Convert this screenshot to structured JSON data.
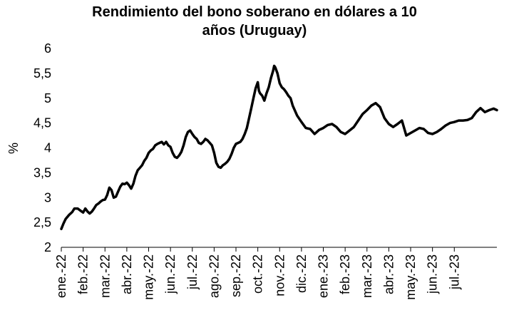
{
  "chart_data": {
    "type": "line",
    "title_line1": "Rendimiento del bono soberano en dólares a 10",
    "title_line2": "años (Uruguay)",
    "ylabel": "%",
    "xlabel": "",
    "ylim": [
      2,
      6
    ],
    "yticks": [
      "2",
      "2,5",
      "3",
      "3,5",
      "4",
      "4,5",
      "5",
      "5,5",
      "6"
    ],
    "ytick_values": [
      2,
      2.5,
      3,
      3.5,
      4,
      4.5,
      5,
      5.5,
      6
    ],
    "x_unit": "month-index (0 = ene.-22)",
    "xlim": [
      0,
      19.95
    ],
    "xticks": [
      "ene.-22",
      "feb.-22",
      "mar.-22",
      "abr.-22",
      "may.-22",
      "jun.-22",
      "jul.-22",
      "ago.-22",
      "sep.-22",
      "oct.-22",
      "nov.-22",
      "dic.-22",
      "ene.-23",
      "feb.-23",
      "mar.-23",
      "abr.-23",
      "may.-23",
      "jun.-23",
      "jul.-23"
    ],
    "grid": false,
    "legend": "none",
    "line_color": "#000000",
    "series": [
      {
        "x": [
          0,
          0.1,
          0.2,
          0.35,
          0.5,
          0.6,
          0.75,
          0.9,
          1.0,
          1.1,
          1.2,
          1.3,
          1.4,
          1.5,
          1.6,
          1.7,
          1.8,
          1.9,
          2.0,
          2.1,
          2.2,
          2.3,
          2.4,
          2.5,
          2.6,
          2.7,
          2.8,
          2.9,
          3.0,
          3.1,
          3.2,
          3.3,
          3.4,
          3.5,
          3.6,
          3.7,
          3.8,
          3.9,
          4.0,
          4.1,
          4.2,
          4.3,
          4.4,
          4.5,
          4.6,
          4.7,
          4.8,
          4.9,
          5.0,
          5.1,
          5.2,
          5.3,
          5.4,
          5.5,
          5.6,
          5.7,
          5.8,
          5.9,
          6.0,
          6.1,
          6.2,
          6.3,
          6.4,
          6.5,
          6.6,
          6.7,
          6.8,
          6.9,
          7.0,
          7.1,
          7.2,
          7.3,
          7.4,
          7.5,
          7.6,
          7.7,
          7.8,
          7.9,
          8.0,
          8.1,
          8.2,
          8.3,
          8.4,
          8.5,
          8.6,
          8.7,
          8.8,
          8.9,
          9.0,
          9.05,
          9.1,
          9.2,
          9.3,
          9.4,
          9.5,
          9.6,
          9.7,
          9.75,
          9.8,
          9.9,
          10.0,
          10.1,
          10.2,
          10.3,
          10.4,
          10.5,
          10.6,
          10.8,
          11.0,
          11.2,
          11.4,
          11.6,
          11.8,
          12.0,
          12.2,
          12.4,
          12.6,
          12.8,
          13.0,
          13.2,
          13.4,
          13.6,
          13.8,
          14.0,
          14.2,
          14.4,
          14.6,
          14.8,
          15.0,
          15.2,
          15.4,
          15.6,
          15.8,
          16.0,
          16.2,
          16.4,
          16.6,
          16.8,
          17.0,
          17.2,
          17.4,
          17.6,
          17.8,
          18.0,
          18.2,
          18.4,
          18.6,
          18.8,
          19.0,
          19.2,
          19.4,
          19.6,
          19.8,
          19.95
        ],
        "values": [
          2.37,
          2.48,
          2.57,
          2.65,
          2.71,
          2.78,
          2.78,
          2.73,
          2.7,
          2.78,
          2.72,
          2.68,
          2.72,
          2.78,
          2.85,
          2.88,
          2.92,
          2.95,
          2.96,
          3.05,
          3.2,
          3.15,
          3.0,
          3.02,
          3.12,
          3.22,
          3.28,
          3.27,
          3.3,
          3.25,
          3.18,
          3.28,
          3.44,
          3.55,
          3.6,
          3.65,
          3.74,
          3.8,
          3.9,
          3.95,
          3.98,
          4.05,
          4.08,
          4.1,
          4.12,
          4.07,
          4.12,
          4.05,
          4.02,
          3.9,
          3.82,
          3.8,
          3.85,
          3.92,
          4.05,
          4.22,
          4.32,
          4.35,
          4.28,
          4.22,
          4.18,
          4.1,
          4.08,
          4.12,
          4.18,
          4.15,
          4.1,
          4.05,
          3.9,
          3.7,
          3.62,
          3.6,
          3.65,
          3.68,
          3.72,
          3.78,
          3.88,
          4.0,
          4.08,
          4.1,
          4.12,
          4.18,
          4.28,
          4.4,
          4.6,
          4.8,
          5.0,
          5.2,
          5.32,
          5.15,
          5.1,
          5.05,
          4.95,
          5.1,
          5.22,
          5.4,
          5.55,
          5.65,
          5.62,
          5.5,
          5.3,
          5.22,
          5.18,
          5.12,
          5.05,
          5.0,
          4.85,
          4.65,
          4.52,
          4.4,
          4.38,
          4.28,
          4.36,
          4.4,
          4.46,
          4.48,
          4.42,
          4.32,
          4.28,
          4.35,
          4.42,
          4.55,
          4.68,
          4.76,
          4.85,
          4.9,
          4.82,
          4.6,
          4.48,
          4.42,
          4.48,
          4.55,
          4.25,
          4.3,
          4.35,
          4.4,
          4.38,
          4.3,
          4.28,
          4.32,
          4.38,
          4.45,
          4.5,
          4.52,
          4.55,
          4.55,
          4.56,
          4.6,
          4.72,
          4.8,
          4.72,
          4.76,
          4.79,
          4.76
        ]
      }
    ]
  }
}
